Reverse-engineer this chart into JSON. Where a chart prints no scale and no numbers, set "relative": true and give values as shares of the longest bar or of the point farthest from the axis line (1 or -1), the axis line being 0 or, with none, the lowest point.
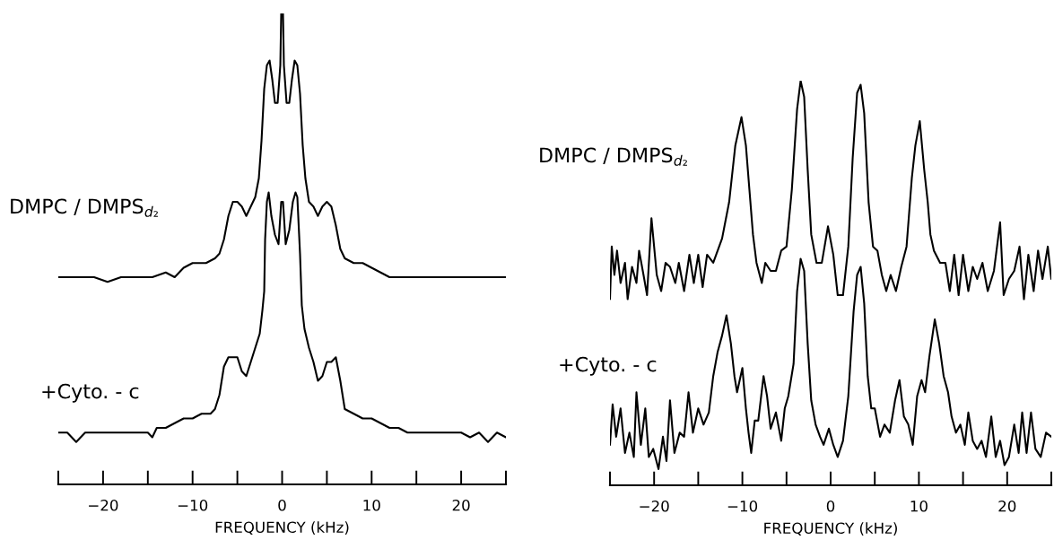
{
  "chart_data": [
    {
      "type": "line",
      "relative": true,
      "xlim": [
        -25,
        25
      ],
      "xlabel": "FREQUENCY (kHz)",
      "xticks": [
        {
          "value": -25,
          "label": null
        },
        {
          "value": -20,
          "label": "−20"
        },
        {
          "value": -15,
          "label": null
        },
        {
          "value": -10,
          "label": "−10"
        },
        {
          "value": -5,
          "label": null
        },
        0,
        {
          "value": 5,
          "label": null
        },
        10,
        {
          "value": 15,
          "label": null
        },
        20,
        {
          "value": 25,
          "label": null
        }
      ],
      "series": [
        {
          "name": "DMPC / DMPS$_{d₂}$",
          "color": "#000000",
          "x": [
            -25,
            -23,
            -21,
            -19.5,
            -18,
            -16,
            -14.5,
            -13,
            -12,
            -11,
            -10,
            -8.5,
            -7.5,
            -7,
            -6.5,
            -6,
            -5.5,
            -5,
            -4.5,
            -4,
            -3.5,
            -3,
            -2.6,
            -2.3,
            -2.0,
            -1.7,
            -1.4,
            -1.1,
            -0.8,
            -0.5,
            -0.2,
            -0.1,
            0.1,
            0.2,
            0.5,
            0.8,
            1.1,
            1.4,
            1.7,
            2.0,
            2.3,
            2.6,
            3,
            3.5,
            4,
            4.5,
            5,
            5.5,
            6,
            6.5,
            7,
            8,
            9,
            10,
            11,
            12,
            14,
            16,
            18,
            20,
            22,
            24,
            25
          ],
          "values": [
            0.44,
            0.44,
            0.44,
            0.43,
            0.44,
            0.44,
            0.44,
            0.45,
            0.44,
            0.46,
            0.47,
            0.47,
            0.48,
            0.49,
            0.52,
            0.57,
            0.6,
            0.6,
            0.59,
            0.57,
            0.59,
            0.61,
            0.65,
            0.73,
            0.84,
            0.89,
            0.9,
            0.86,
            0.81,
            0.81,
            0.89,
            1.0,
            1.0,
            0.89,
            0.81,
            0.81,
            0.86,
            0.9,
            0.89,
            0.83,
            0.72,
            0.65,
            0.6,
            0.59,
            0.57,
            0.59,
            0.6,
            0.59,
            0.55,
            0.5,
            0.48,
            0.47,
            0.47,
            0.46,
            0.45,
            0.44,
            0.44,
            0.44,
            0.44,
            0.44,
            0.44,
            0.44,
            0.44
          ]
        },
        {
          "name": "+Cyto. - c",
          "color": "#000000",
          "x": [
            -25,
            -24,
            -23,
            -22,
            -21,
            -20,
            -19,
            -18,
            -17,
            -16,
            -15,
            -14.5,
            -14,
            -13,
            -12,
            -11,
            -10,
            -9,
            -8,
            -7.5,
            -7,
            -6.5,
            -6,
            -5.5,
            -5,
            -4.5,
            -4,
            -3.5,
            -3,
            -2.5,
            -2.2,
            -2,
            -1.9,
            -1.7,
            -1.5,
            -1.2,
            -0.8,
            -0.4,
            -0.1,
            0.1,
            0.4,
            0.8,
            1.2,
            1.5,
            1.7,
            2,
            2.2,
            2.5,
            3,
            3.5,
            4,
            4.5,
            5,
            5.5,
            6,
            6.5,
            7,
            8,
            9,
            10,
            11,
            12,
            13,
            14,
            15,
            16,
            17,
            18,
            19,
            20,
            21,
            22,
            23,
            24,
            25
          ],
          "values": [
            0.11,
            0.11,
            0.09,
            0.11,
            0.11,
            0.11,
            0.11,
            0.11,
            0.11,
            0.11,
            0.11,
            0.1,
            0.12,
            0.12,
            0.13,
            0.14,
            0.14,
            0.15,
            0.15,
            0.16,
            0.19,
            0.25,
            0.27,
            0.27,
            0.27,
            0.24,
            0.23,
            0.26,
            0.29,
            0.32,
            0.37,
            0.41,
            0.52,
            0.6,
            0.62,
            0.57,
            0.53,
            0.51,
            0.6,
            0.6,
            0.51,
            0.54,
            0.6,
            0.62,
            0.61,
            0.49,
            0.38,
            0.33,
            0.29,
            0.26,
            0.22,
            0.23,
            0.26,
            0.26,
            0.27,
            0.22,
            0.16,
            0.15,
            0.14,
            0.14,
            0.13,
            0.12,
            0.12,
            0.11,
            0.11,
            0.11,
            0.11,
            0.11,
            0.11,
            0.11,
            0.1,
            0.11,
            0.09,
            0.11,
            0.1
          ]
        }
      ]
    },
    {
      "type": "line",
      "relative": true,
      "xlim": [
        -25,
        25
      ],
      "xlabel": "FREQUENCY (kHz)",
      "xticks": [
        {
          "value": -25,
          "label": null
        },
        {
          "value": -20,
          "label": "−20"
        },
        {
          "value": -15,
          "label": null
        },
        {
          "value": -10,
          "label": "−10"
        },
        {
          "value": -5,
          "label": null
        },
        0,
        {
          "value": 5,
          "label": null
        },
        10,
        {
          "value": 15,
          "label": null
        },
        20,
        {
          "value": 25,
          "label": null
        }
      ],
      "series": [
        {
          "name": "DMPC / DMPS$_{d₂}$",
          "color": "#000000",
          "x": [
            -25,
            -24.8,
            -24.5,
            -24.2,
            -23.8,
            -23.3,
            -23,
            -22.5,
            -22,
            -21.7,
            -21.2,
            -20.8,
            -20.3,
            -19.7,
            -19.2,
            -18.7,
            -18.2,
            -17.6,
            -17.2,
            -16.6,
            -16,
            -15.5,
            -15,
            -14.5,
            -14,
            -13.3,
            -12.8,
            -12.3,
            -11.5,
            -10.8,
            -10.1,
            -9.6,
            -9.2,
            -8.8,
            -8.4,
            -7.8,
            -7.4,
            -6.8,
            -6.2,
            -5.6,
            -5,
            -4.4,
            -3.8,
            -3.4,
            -3.0,
            -2.6,
            -2.2,
            -1.6,
            -1,
            -0.3,
            0.3,
            0.8,
            1.4,
            2,
            2.5,
            3,
            3.4,
            3.8,
            4.3,
            4.8,
            5.3,
            5.8,
            6.3,
            6.8,
            7.4,
            8,
            8.6,
            9.2,
            9.6,
            10.1,
            10.6,
            11,
            11.3,
            11.7,
            12.4,
            13,
            13.5,
            14,
            14.5,
            15,
            15.6,
            16.1,
            16.6,
            17.2,
            17.8,
            18.5,
            19.2,
            19.6,
            20.2,
            20.8,
            21.4,
            21.9,
            22.4,
            23,
            23.5,
            24,
            24.6,
            25
          ],
          "values": [
            0.46,
            0.59,
            0.52,
            0.58,
            0.5,
            0.55,
            0.46,
            0.54,
            0.5,
            0.58,
            0.52,
            0.47,
            0.66,
            0.52,
            0.48,
            0.55,
            0.54,
            0.5,
            0.55,
            0.48,
            0.57,
            0.5,
            0.57,
            0.49,
            0.57,
            0.55,
            0.58,
            0.61,
            0.7,
            0.84,
            0.91,
            0.84,
            0.73,
            0.62,
            0.55,
            0.5,
            0.55,
            0.53,
            0.53,
            0.58,
            0.59,
            0.73,
            0.93,
            1.0,
            0.96,
            0.78,
            0.62,
            0.55,
            0.55,
            0.64,
            0.57,
            0.47,
            0.47,
            0.59,
            0.81,
            0.97,
            0.99,
            0.92,
            0.7,
            0.59,
            0.58,
            0.52,
            0.48,
            0.52,
            0.48,
            0.54,
            0.59,
            0.76,
            0.84,
            0.9,
            0.78,
            0.7,
            0.62,
            0.58,
            0.55,
            0.55,
            0.48,
            0.57,
            0.47,
            0.57,
            0.48,
            0.54,
            0.51,
            0.55,
            0.48,
            0.53,
            0.65,
            0.47,
            0.51,
            0.53,
            0.59,
            0.46,
            0.57,
            0.48,
            0.58,
            0.51,
            0.59,
            0.51
          ]
        },
        {
          "name": "+Cyto. - c",
          "color": "#000000",
          "x": [
            -25,
            -24.7,
            -24.3,
            -23.8,
            -23.3,
            -22.8,
            -22.3,
            -22,
            -21.5,
            -21,
            -20.6,
            -20.1,
            -19.5,
            -19,
            -18.6,
            -18.2,
            -17.7,
            -17.1,
            -16.6,
            -16.1,
            -15.6,
            -15,
            -14.4,
            -13.8,
            -13.3,
            -12.8,
            -12.3,
            -11.8,
            -11.3,
            -10.9,
            -10.6,
            -10.0,
            -9.6,
            -9.3,
            -9.0,
            -8.6,
            -8.2,
            -7.6,
            -7.2,
            -6.8,
            -6.2,
            -5.6,
            -5.2,
            -4.8,
            -4.2,
            -3.8,
            -3.4,
            -3.0,
            -2.6,
            -2.2,
            -1.7,
            -1.2,
            -0.8,
            -0.2,
            0.3,
            0.8,
            1.4,
            2.0,
            2.6,
            3.0,
            3.4,
            3.8,
            4.2,
            4.6,
            5,
            5.6,
            6.1,
            6.7,
            7.3,
            7.8,
            8.3,
            8.8,
            9.3,
            9.8,
            10.3,
            10.7,
            11.2,
            11.8,
            12.3,
            12.8,
            13.3,
            13.7,
            14.2,
            14.7,
            15.2,
            15.6,
            16.1,
            16.6,
            17.1,
            17.6,
            18.2,
            18.7,
            19.2,
            19.7,
            20.2,
            20.8,
            21.3,
            21.7,
            22.2,
            22.7,
            23.2,
            23.8,
            24.4,
            25
          ],
          "values": [
            0.1,
            0.2,
            0.12,
            0.19,
            0.08,
            0.13,
            0.07,
            0.23,
            0.1,
            0.19,
            0.07,
            0.09,
            0.04,
            0.12,
            0.06,
            0.21,
            0.08,
            0.13,
            0.12,
            0.23,
            0.13,
            0.19,
            0.15,
            0.18,
            0.27,
            0.33,
            0.37,
            0.42,
            0.35,
            0.27,
            0.23,
            0.29,
            0.19,
            0.13,
            0.08,
            0.16,
            0.16,
            0.27,
            0.22,
            0.14,
            0.18,
            0.11,
            0.19,
            0.22,
            0.3,
            0.48,
            0.56,
            0.53,
            0.35,
            0.21,
            0.15,
            0.12,
            0.1,
            0.14,
            0.1,
            0.07,
            0.11,
            0.22,
            0.43,
            0.52,
            0.54,
            0.45,
            0.27,
            0.19,
            0.19,
            0.12,
            0.15,
            0.13,
            0.21,
            0.26,
            0.17,
            0.15,
            0.1,
            0.22,
            0.26,
            0.23,
            0.32,
            0.41,
            0.35,
            0.27,
            0.23,
            0.17,
            0.13,
            0.15,
            0.1,
            0.18,
            0.11,
            0.09,
            0.11,
            0.07,
            0.17,
            0.07,
            0.11,
            0.05,
            0.07,
            0.15,
            0.08,
            0.18,
            0.08,
            0.18,
            0.09,
            0.07,
            0.13,
            0.12
          ]
        }
      ]
    }
  ]
}
